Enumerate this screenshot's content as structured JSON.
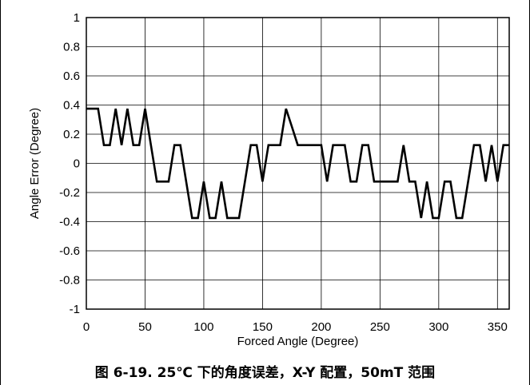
{
  "caption": "图 6-19. 25℃ 下的角度误差，X-Y 配置，50mT 范围",
  "chart_data": {
    "type": "line",
    "xlabel": "Forced Angle (Degree)",
    "ylabel": "Angle Error (Degree)",
    "xlim": [
      0,
      360
    ],
    "ylim": [
      -1,
      1
    ],
    "x_ticks": [
      "0",
      "50",
      "100",
      "150",
      "200",
      "250",
      "300",
      "350"
    ],
    "y_ticks": [
      "1",
      "0.8",
      "0.6",
      "0.4",
      "0.2",
      "0",
      "-0.2",
      "-0.4",
      "-0.6",
      "-0.8",
      "-1"
    ],
    "grid": true,
    "line_color": "#000000",
    "series": [
      {
        "x": [
          0,
          10,
          15,
          20,
          25,
          30,
          35,
          40,
          45,
          50,
          55,
          60,
          65,
          70,
          75,
          80,
          85,
          90,
          95,
          100,
          105,
          110,
          115,
          120,
          125,
          130,
          135,
          140,
          145,
          150,
          155,
          160,
          165,
          170,
          175,
          180,
          185,
          190,
          195,
          200,
          205,
          210,
          215,
          220,
          225,
          230,
          235,
          240,
          245,
          250,
          255,
          260,
          265,
          270,
          275,
          280,
          285,
          290,
          295,
          300,
          305,
          310,
          315,
          320,
          325,
          330,
          335,
          340,
          345,
          350,
          355,
          360
        ],
        "values": [
          0.375,
          0.375,
          0.125,
          0.125,
          0.375,
          0.125,
          0.375,
          0.125,
          0.125,
          0.375,
          0.125,
          -0.125,
          -0.125,
          -0.125,
          0.125,
          0.125,
          -0.125,
          -0.375,
          -0.375,
          -0.125,
          -0.375,
          -0.375,
          -0.125,
          -0.375,
          -0.375,
          -0.375,
          -0.125,
          0.125,
          0.125,
          -0.125,
          0.125,
          0.125,
          0.125,
          0.375,
          0.25,
          0.125,
          0.125,
          0.125,
          0.125,
          0.125,
          -0.125,
          0.125,
          0.125,
          0.125,
          -0.125,
          -0.125,
          0.125,
          0.125,
          -0.125,
          -0.125,
          -0.125,
          -0.125,
          -0.125,
          0.125,
          -0.125,
          -0.125,
          -0.375,
          -0.125,
          -0.375,
          -0.375,
          -0.125,
          -0.125,
          -0.375,
          -0.375,
          -0.125,
          0.125,
          0.125,
          -0.125,
          0.125,
          -0.125,
          0.125,
          0.125
        ]
      }
    ]
  }
}
